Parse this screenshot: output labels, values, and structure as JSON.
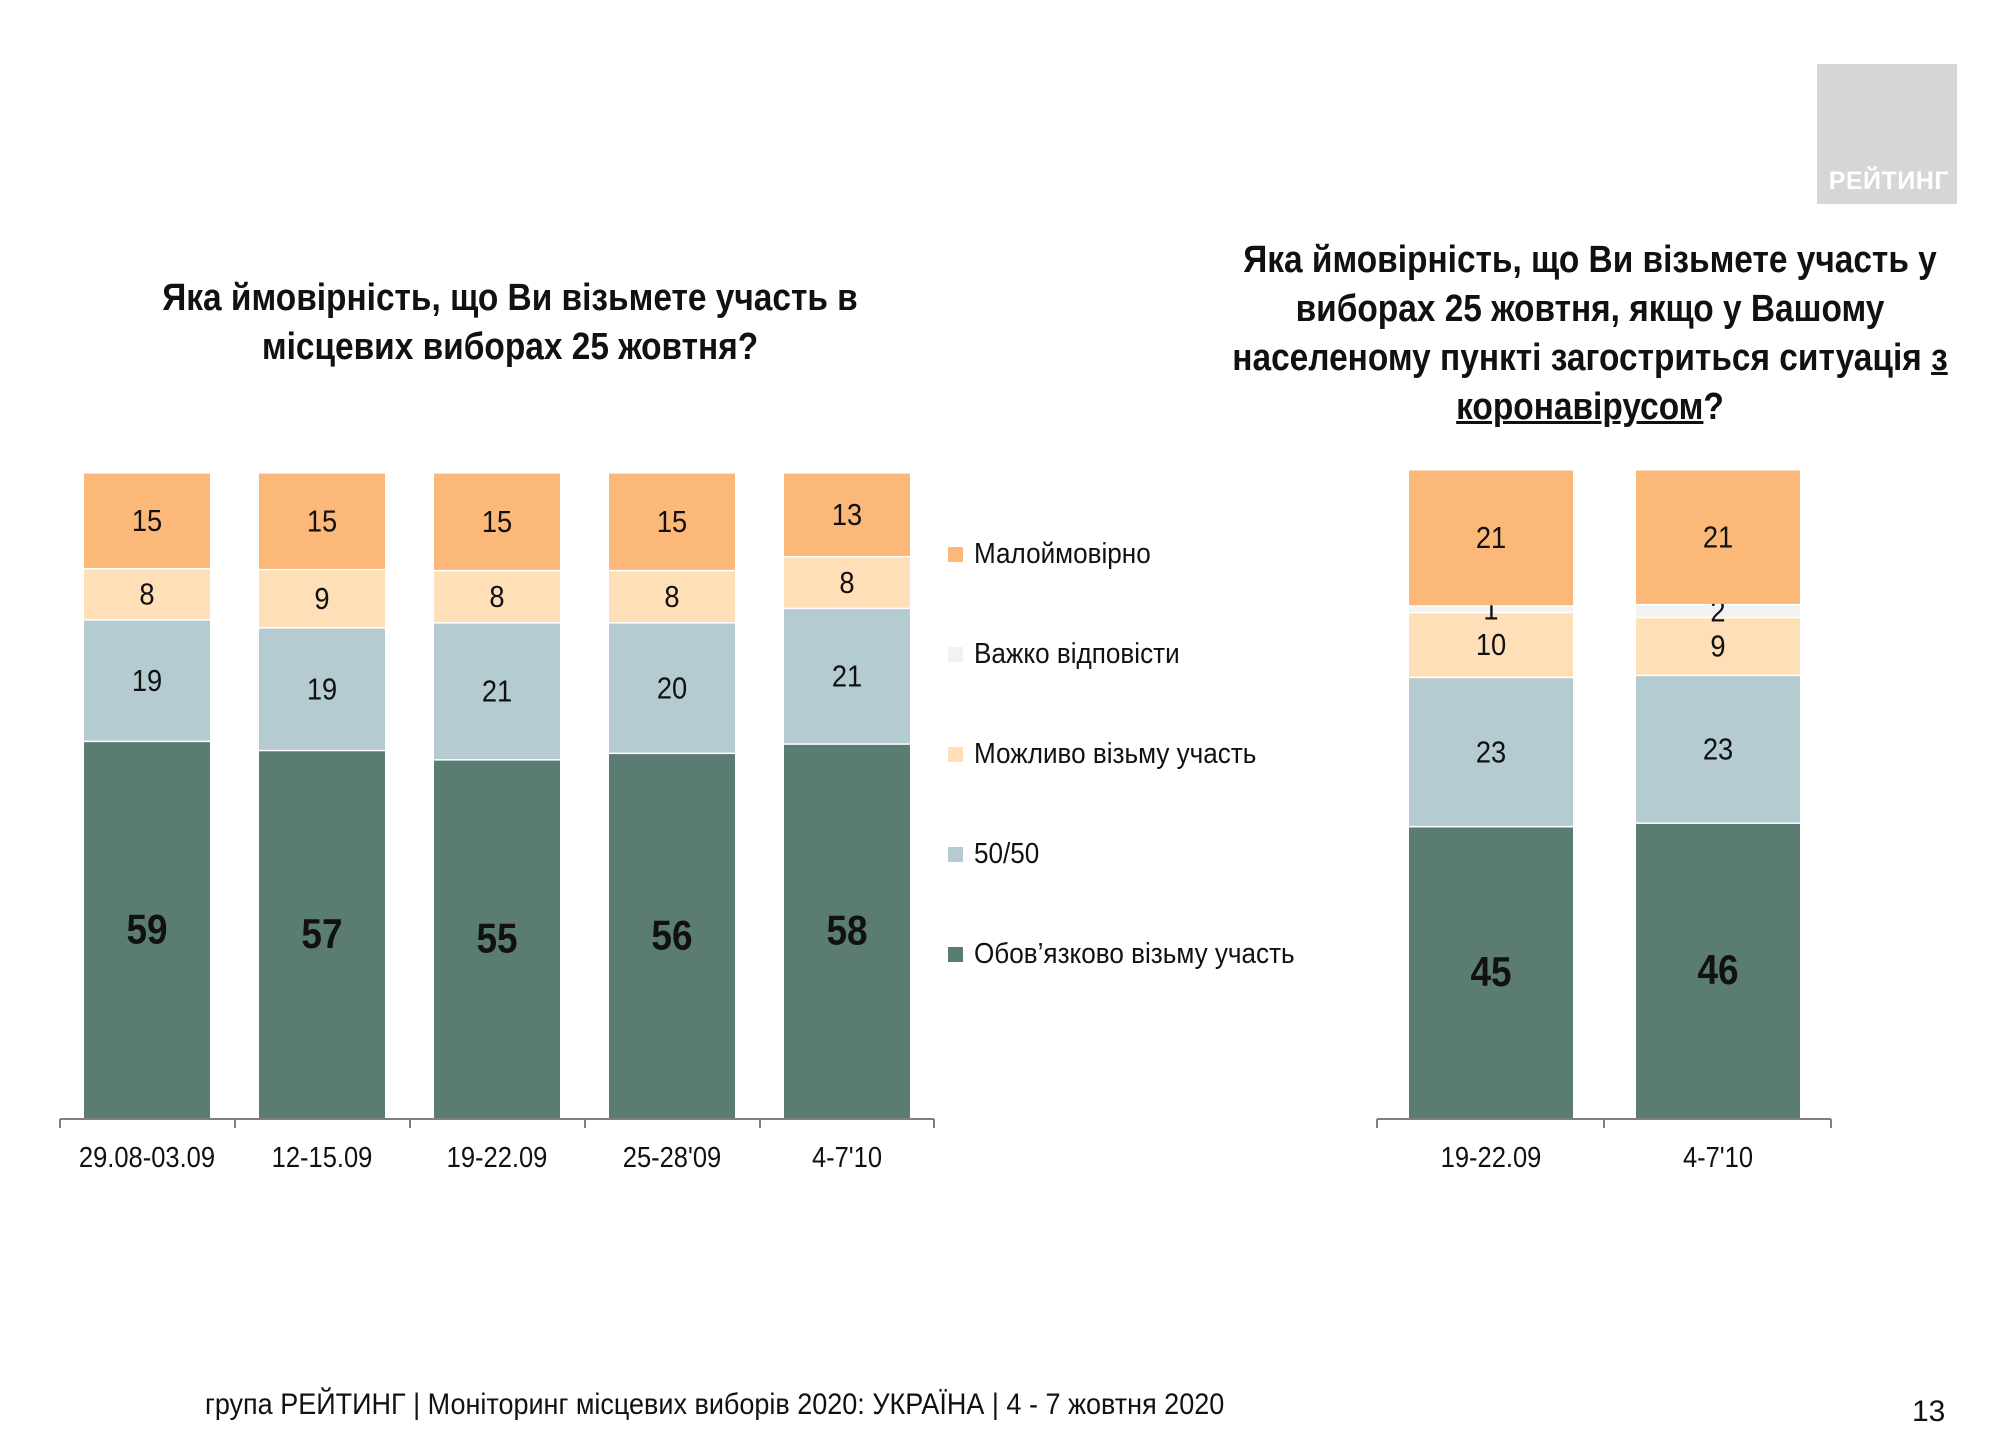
{
  "logo": {
    "text": "РЕЙТИНГ"
  },
  "colors": {
    "unlikely": "#fbb879",
    "hard_to_say": "#f2f2f2",
    "maybe": "#fedfb7",
    "fifty": "#b4cbd1",
    "definitely": "#5b7c72"
  },
  "legend": [
    {
      "key": "unlikely",
      "label": "Малоймовірно",
      "color": "#fbb879"
    },
    {
      "key": "hard_to_say",
      "label": "Важко відповісти",
      "color": "#f2f2f2"
    },
    {
      "key": "maybe",
      "label": "Можливо візьму участь",
      "color": "#fedfb7"
    },
    {
      "key": "fifty",
      "label": "50/50",
      "color": "#b4cbd1"
    },
    {
      "key": "definitely",
      "label": "Обов’язково візьму участь",
      "color": "#5b7c72"
    }
  ],
  "chart_data": [
    {
      "type": "bar",
      "stacked": true,
      "title": "Яка ймовірність, що Ви візьмете участь в місцевих виборах 25 жовтня?",
      "title_line1": "Яка ймовірність, що Ви візьмете участь в",
      "title_line2": "місцевих виборах 25 жовтня?",
      "categories": [
        "29.08-03.09",
        "12-15.09",
        "19-22.09",
        "25-28'09",
        "4-7'10"
      ],
      "series": [
        {
          "name": "Обов’язково візьму участь",
          "key": "definitely",
          "values": [
            59,
            57,
            55,
            56,
            58
          ]
        },
        {
          "name": "50/50",
          "key": "fifty",
          "values": [
            19,
            19,
            21,
            20,
            21
          ]
        },
        {
          "name": "Можливо візьму участь",
          "key": "maybe",
          "values": [
            8,
            9,
            8,
            8,
            8
          ]
        },
        {
          "name": "Важко відповісти",
          "key": "hard_to_say",
          "values": [
            null,
            null,
            null,
            null,
            null
          ]
        },
        {
          "name": "Малоймовірно",
          "key": "unlikely",
          "values": [
            15,
            15,
            15,
            15,
            13
          ]
        }
      ],
      "ylim": [
        0,
        100
      ],
      "legend_position": "right"
    },
    {
      "type": "bar",
      "stacked": true,
      "title": "Яка ймовірність, що Ви візьмете участь у виборах 25 жовтня, якщо у Вашому населеному пункті загостриться ситуація з коронавірусом?",
      "title_line1": "Яка ймовірність, що Ви візьмете участь у",
      "title_line2": "виборах 25 жовтня, якщо у Вашому",
      "title_line3_a": "населеному пункті загостриться ситуація ",
      "title_line3_b": "з",
      "title_line4_a": "коронавірусом",
      "title_line4_b": "?",
      "categories": [
        "19-22.09",
        "4-7'10"
      ],
      "series": [
        {
          "name": "Обов’язково візьму участь",
          "key": "definitely",
          "values": [
            45,
            46
          ]
        },
        {
          "name": "50/50",
          "key": "fifty",
          "values": [
            23,
            23
          ]
        },
        {
          "name": "Можливо візьму участь",
          "key": "maybe",
          "values": [
            10,
            9
          ]
        },
        {
          "name": "Важко відповісти",
          "key": "hard_to_say",
          "values": [
            1,
            2
          ]
        },
        {
          "name": "Малоймовірно",
          "key": "unlikely",
          "values": [
            21,
            21
          ]
        }
      ],
      "ylim": [
        0,
        100
      ]
    }
  ],
  "footer": "група РЕЙТИНГ | Моніторинг місцевих виборів 2020: УКРАЇНА | 4 - 7 жовтня 2020",
  "page_number": "13"
}
